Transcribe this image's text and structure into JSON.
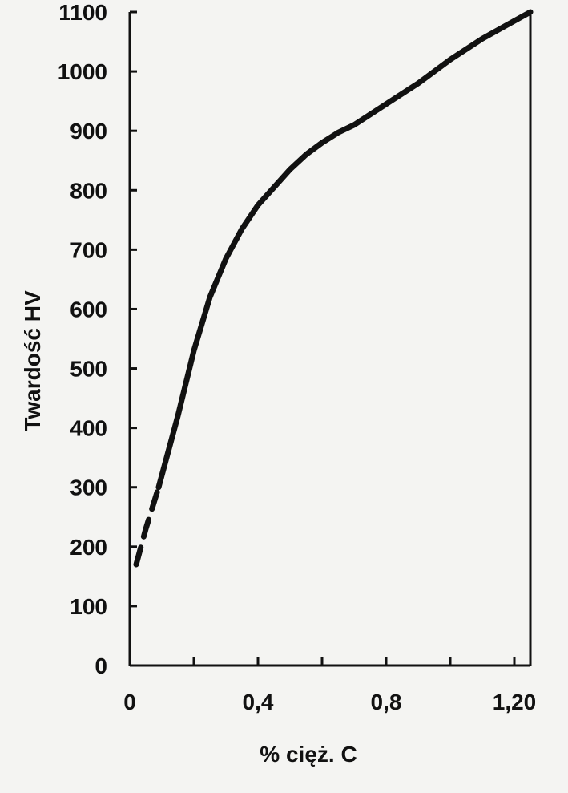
{
  "chart_data": {
    "type": "line",
    "xlabel": "%  cięż.  C",
    "ylabel": "Twardość HV",
    "xlim": [
      0,
      1.25
    ],
    "ylim": [
      0,
      1100
    ],
    "x_ticks": [
      0,
      0.2,
      0.4,
      0.6,
      0.8,
      1.0,
      1.2
    ],
    "x_tick_labels": [
      "0",
      "",
      "0,4",
      "",
      "0,8",
      "",
      "1,20"
    ],
    "y_ticks": [
      0,
      100,
      200,
      300,
      400,
      500,
      600,
      700,
      800,
      900,
      1000,
      1100
    ],
    "y_tick_labels": [
      "0",
      "100",
      "200",
      "300",
      "400",
      "500",
      "600",
      "700",
      "800",
      "900",
      "1000",
      "1100"
    ],
    "grid": false,
    "series": [
      {
        "style": "dashed",
        "x": [
          0.02,
          0.05,
          0.09
        ],
        "y": [
          170,
          230,
          300
        ]
      },
      {
        "style": "solid",
        "x": [
          0.09,
          0.15,
          0.2,
          0.25,
          0.3,
          0.35,
          0.4,
          0.45,
          0.5,
          0.55,
          0.6,
          0.65,
          0.7,
          0.8,
          0.9,
          1.0,
          1.1,
          1.2,
          1.25
        ],
        "y": [
          300,
          420,
          530,
          620,
          685,
          735,
          775,
          805,
          835,
          860,
          880,
          897,
          910,
          945,
          980,
          1020,
          1055,
          1085,
          1100
        ]
      }
    ]
  }
}
